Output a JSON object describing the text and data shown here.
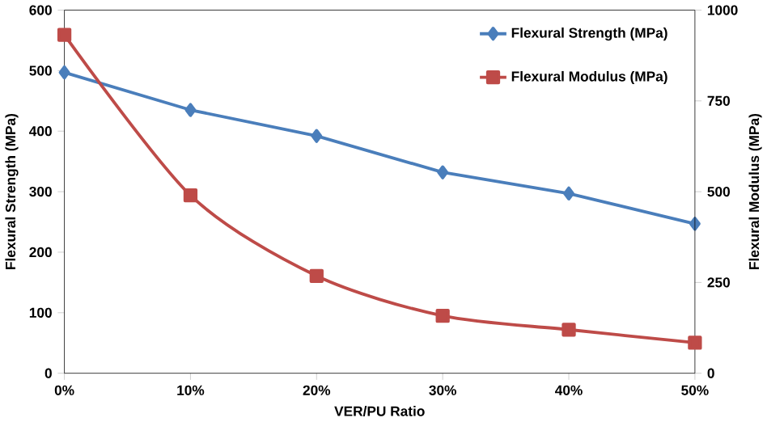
{
  "chart_data": {
    "type": "line",
    "xlabel": "VER/PU Ratio",
    "ylabel": "Flexural Strength (MPa)",
    "y2label": "Flexural Modulus (MPa)",
    "categories": [
      "0%",
      "10%",
      "20%",
      "30%",
      "40%",
      "50%"
    ],
    "series": [
      {
        "name": "Flexural Strength  (MPa)",
        "color": "#4a7ebb",
        "marker": "diamond",
        "values": [
          497,
          435,
          392,
          332,
          297,
          247
        ]
      },
      {
        "name": "Flexural Modulus  (MPa)",
        "color": "#be4b48",
        "marker": "square",
        "axis": "y2",
        "values": [
          932,
          490,
          268,
          158,
          120,
          84
        ]
      }
    ],
    "ylim": [
      0,
      600
    ],
    "yticks": [
      0,
      100,
      200,
      300,
      400,
      500,
      600
    ],
    "y2lim": [
      0,
      1000
    ],
    "y2ticks": [
      0,
      250,
      500,
      750,
      1000
    ],
    "legend": "top right",
    "grid": false
  }
}
